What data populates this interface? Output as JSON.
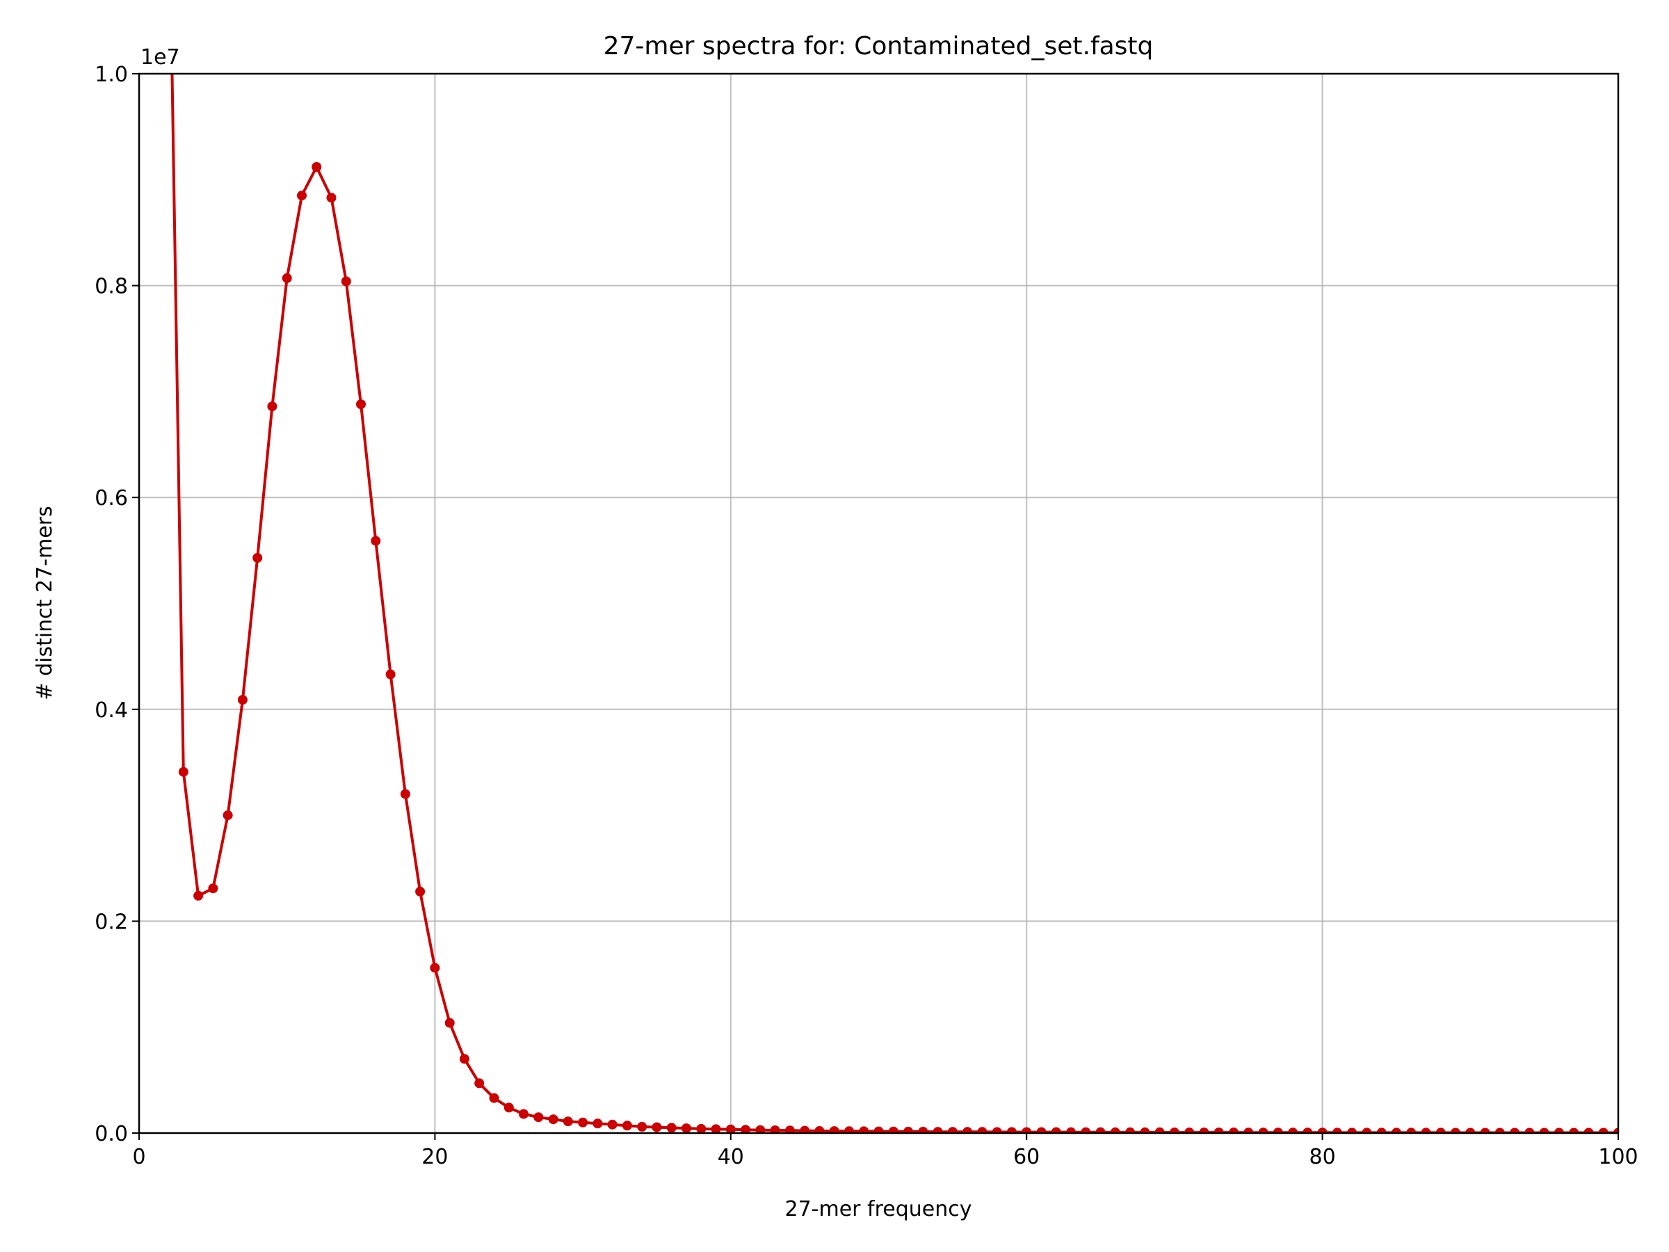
{
  "chart_data": {
    "type": "line",
    "title": "27-mer spectra for: Contaminated_set.fastq",
    "xlabel": "27-mer frequency",
    "ylabel": "# distinct 27-mers",
    "y_offset_label": "1e7",
    "xlim": [
      0,
      100
    ],
    "ylim": [
      0,
      1.0
    ],
    "y_scale_factor": 10000000,
    "x_ticks": [
      0,
      20,
      40,
      60,
      80,
      100
    ],
    "x_tick_labels": [
      "0",
      "20",
      "40",
      "60",
      "80",
      "100"
    ],
    "y_ticks": [
      0.0,
      0.2,
      0.4,
      0.6,
      0.8,
      1.0
    ],
    "y_tick_labels": [
      "0.0",
      "0.2",
      "0.4",
      "0.6",
      "0.8",
      "1.0"
    ],
    "grid": true,
    "color": "#cc0000",
    "x": [
      2,
      3,
      4,
      5,
      6,
      7,
      8,
      9,
      10,
      11,
      12,
      13,
      14,
      15,
      16,
      17,
      18,
      19,
      20,
      21,
      22,
      23,
      24,
      25,
      26,
      27,
      28,
      29,
      30,
      31,
      32,
      33,
      34,
      35,
      36,
      37,
      38,
      39,
      40,
      41,
      42,
      43,
      44,
      45,
      46,
      47,
      48,
      49,
      50,
      51,
      52,
      53,
      54,
      55,
      56,
      57,
      58,
      59,
      60,
      61,
      62,
      63,
      64,
      65,
      66,
      67,
      68,
      69,
      70,
      71,
      72,
      73,
      74,
      75,
      76,
      77,
      78,
      79,
      80,
      81,
      82,
      83,
      84,
      85,
      86,
      87,
      88,
      89,
      90,
      91,
      92,
      93,
      94,
      95,
      96,
      97,
      98,
      99,
      100
    ],
    "values": [
      1.2,
      0.341,
      0.224,
      0.231,
      0.3,
      0.409,
      0.543,
      0.686,
      0.807,
      0.885,
      0.912,
      0.883,
      0.804,
      0.688,
      0.559,
      0.433,
      0.32,
      0.228,
      0.156,
      0.104,
      0.07,
      0.047,
      0.033,
      0.024,
      0.018,
      0.015,
      0.013,
      0.011,
      0.01,
      0.009,
      0.008,
      0.007,
      0.006,
      0.0055,
      0.005,
      0.0045,
      0.004,
      0.0037,
      0.0034,
      0.0031,
      0.0028,
      0.0026,
      0.0024,
      0.0022,
      0.002,
      0.0019,
      0.0018,
      0.0017,
      0.0016,
      0.0015,
      0.0014,
      0.0013,
      0.0012,
      0.0012,
      0.0011,
      0.0011,
      0.001,
      0.001,
      0.0009,
      0.0009,
      0.0009,
      0.0008,
      0.0008,
      0.0008,
      0.0007,
      0.0007,
      0.0007,
      0.0007,
      0.0006,
      0.0006,
      0.0006,
      0.0006,
      0.0006,
      0.0005,
      0.0005,
      0.0005,
      0.0005,
      0.0005,
      0.0005,
      0.0004,
      0.0004,
      0.0004,
      0.0004,
      0.0004,
      0.0004,
      0.0004,
      0.0004,
      0.0003,
      0.0003,
      0.0003,
      0.0003,
      0.0003,
      0.0003,
      0.0003,
      0.0003,
      0.0003,
      0.0003,
      0.0003,
      0.0003
    ]
  }
}
